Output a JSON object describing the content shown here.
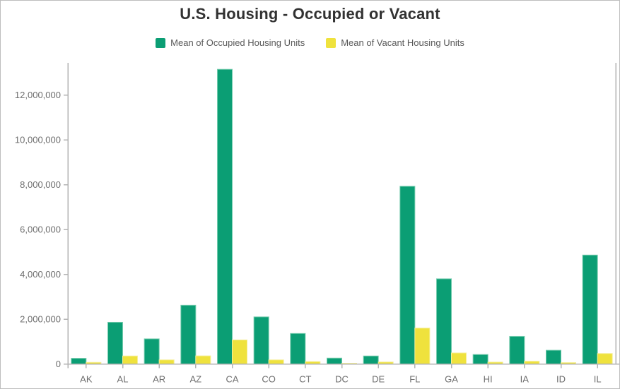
{
  "header": {
    "title": "U.S. Housing - Occupied or Vacant"
  },
  "legend": {
    "items": [
      {
        "label": "Mean of Occupied Housing Units",
        "color": "#0b9e74"
      },
      {
        "label": "Mean of Vacant Housing Units",
        "color": "#efe23d"
      }
    ]
  },
  "chart_data": {
    "type": "bar",
    "title": "U.S. Housing - Occupied or Vacant",
    "categories": [
      "AK",
      "AL",
      "AR",
      "AZ",
      "CA",
      "CO",
      "CT",
      "DC",
      "DE",
      "FL",
      "GA",
      "HI",
      "IA",
      "ID",
      "IL"
    ],
    "series": [
      {
        "name": "Mean of Occupied Housing Units",
        "color": "#0b9e74",
        "border_color": "#74cbad",
        "values": [
          250000,
          1860000,
          1120000,
          2620000,
          13150000,
          2100000,
          1360000,
          260000,
          355000,
          7930000,
          3800000,
          420000,
          1230000,
          610000,
          4860000
        ]
      },
      {
        "name": "Mean of Vacant Housing Units",
        "color": "#efe23d",
        "border_color": "#f5ee96",
        "values": [
          70000,
          355000,
          180000,
          360000,
          1070000,
          180000,
          105000,
          30000,
          85000,
          1600000,
          490000,
          80000,
          120000,
          60000,
          465000
        ]
      }
    ],
    "xlabel": "",
    "ylabel": "",
    "ylim": [
      0,
      13400000
    ],
    "y_ticks": [
      {
        "value": 0,
        "label": "0"
      },
      {
        "value": 2000000,
        "label": "2,000,000"
      },
      {
        "value": 4000000,
        "label": "4,000,000"
      },
      {
        "value": 6000000,
        "label": "6,000,000"
      },
      {
        "value": 8000000,
        "label": "8,000,000"
      },
      {
        "value": 10000000,
        "label": "10,000,000"
      },
      {
        "value": 12000000,
        "label": "12,000,000"
      }
    ],
    "grid": false,
    "legend_position": "top"
  },
  "colors": {
    "axis_line": "#b3b3b3",
    "tick_label": "#6e6e6e",
    "title_text": "#323232",
    "legend_text": "#595959",
    "background": "#ffffff",
    "frame_border": "#bdbdbd"
  }
}
